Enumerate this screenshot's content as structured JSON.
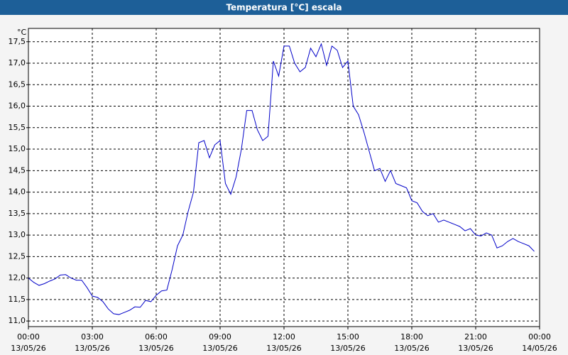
{
  "chart_data": {
    "type": "line",
    "title": "Temperatura [°C] escala",
    "y_unit": "°C",
    "x": [
      0,
      0.25,
      0.5,
      0.75,
      1,
      1.25,
      1.5,
      1.75,
      2,
      2.25,
      2.5,
      2.75,
      3,
      3.25,
      3.5,
      3.75,
      4,
      4.25,
      4.5,
      4.75,
      5,
      5.25,
      5.5,
      5.75,
      6,
      6.25,
      6.5,
      6.75,
      7,
      7.25,
      7.5,
      7.75,
      8,
      8.25,
      8.5,
      8.75,
      9,
      9.25,
      9.5,
      9.75,
      10,
      10.25,
      10.5,
      10.75,
      11,
      11.25,
      11.5,
      11.75,
      12,
      12.25,
      12.5,
      12.75,
      13,
      13.25,
      13.5,
      13.75,
      14,
      14.25,
      14.5,
      14.75,
      15,
      15.25,
      15.5,
      15.75,
      16,
      16.25,
      16.5,
      16.75,
      17,
      17.25,
      17.5,
      17.75,
      18,
      18.25,
      18.5,
      18.75,
      19,
      19.25,
      19.5,
      19.75,
      20,
      20.25,
      20.5,
      20.75,
      21,
      21.25,
      21.5,
      21.75,
      22,
      22.25,
      22.5,
      22.75,
      23,
      23.25,
      23.5,
      23.75
    ],
    "series": [
      {
        "name": "Temperatura",
        "color": "#0000c8",
        "values": [
          12.0,
          11.9,
          11.83,
          11.87,
          11.93,
          11.98,
          12.07,
          12.08,
          12.0,
          11.95,
          11.95,
          11.78,
          11.58,
          11.55,
          11.45,
          11.28,
          11.17,
          11.15,
          11.2,
          11.25,
          11.33,
          11.32,
          11.48,
          11.45,
          11.6,
          11.7,
          11.72,
          12.2,
          12.75,
          13.0,
          13.55,
          14.0,
          15.15,
          15.2,
          14.8,
          15.1,
          15.2,
          14.2,
          13.95,
          14.35,
          15.0,
          15.9,
          15.9,
          15.45,
          15.2,
          15.3,
          17.05,
          16.7,
          17.4,
          17.4,
          17.0,
          16.8,
          16.9,
          17.35,
          17.15,
          17.45,
          16.95,
          17.4,
          17.3,
          16.9,
          17.05,
          16.0,
          15.8,
          15.4,
          14.95,
          14.5,
          14.55,
          14.25,
          14.5,
          14.2,
          14.15,
          14.1,
          13.8,
          13.75,
          13.55,
          13.45,
          13.5,
          13.3,
          13.35,
          13.3,
          13.25,
          13.2,
          13.1,
          13.15,
          13.0,
          12.98,
          13.05,
          13.0,
          12.7,
          12.75,
          12.85,
          12.92,
          12.85,
          12.8,
          12.75,
          12.62
        ]
      }
    ],
    "xlim": [
      0,
      24
    ],
    "xticks": [
      {
        "value": 0,
        "label": "00:00",
        "date": "13/05/26"
      },
      {
        "value": 3,
        "label": "03:00",
        "date": "13/05/26"
      },
      {
        "value": 6,
        "label": "06:00",
        "date": "13/05/26"
      },
      {
        "value": 9,
        "label": "09:00",
        "date": "13/05/26"
      },
      {
        "value": 12,
        "label": "12:00",
        "date": "13/05/26"
      },
      {
        "value": 15,
        "label": "15:00",
        "date": "13/05/26"
      },
      {
        "value": 18,
        "label": "18:00",
        "date": "13/05/26"
      },
      {
        "value": 21,
        "label": "21:00",
        "date": "13/05/26"
      },
      {
        "value": 24,
        "label": "00:00",
        "date": "14/05/26"
      }
    ],
    "ylim": [
      10.87,
      17.81
    ],
    "yticks": [
      {
        "value": 11,
        "label": "11,0"
      },
      {
        "value": 11.5,
        "label": "11,5"
      },
      {
        "value": 12,
        "label": "12,0"
      },
      {
        "value": 12.5,
        "label": "12,5"
      },
      {
        "value": 13,
        "label": "13,0"
      },
      {
        "value": 13.5,
        "label": "13,5"
      },
      {
        "value": 14,
        "label": "14,0"
      },
      {
        "value": 14.5,
        "label": "14,5"
      },
      {
        "value": 15,
        "label": "15,0"
      },
      {
        "value": 15.5,
        "label": "15,5"
      },
      {
        "value": 16,
        "label": "16,0"
      },
      {
        "value": 16.5,
        "label": "16,5"
      },
      {
        "value": 17,
        "label": "17,0"
      },
      {
        "value": 17.5,
        "label": "17,5"
      }
    ],
    "grid": true
  }
}
